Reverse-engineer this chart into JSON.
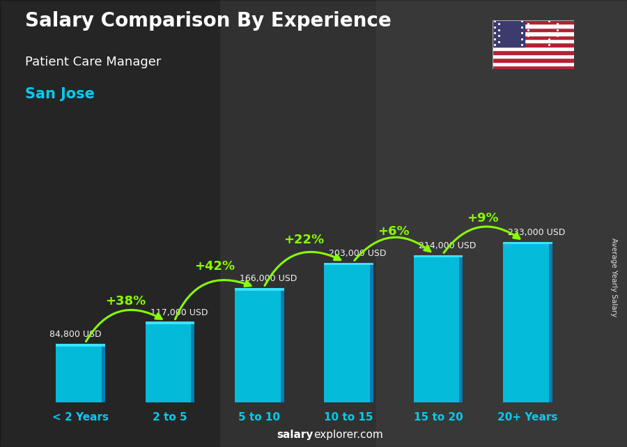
{
  "categories": [
    "< 2 Years",
    "2 to 5",
    "5 to 10",
    "10 to 15",
    "15 to 20",
    "20+ Years"
  ],
  "values": [
    84800,
    117000,
    166000,
    203000,
    214000,
    233000
  ],
  "salary_labels": [
    "84,800 USD",
    "117,000 USD",
    "166,000 USD",
    "203,000 USD",
    "214,000 USD",
    "233,000 USD"
  ],
  "pct_changes": [
    "+38%",
    "+42%",
    "+22%",
    "+6%",
    "+9%"
  ],
  "bar_color_main": "#00c8e8",
  "bar_color_left": "#00d8f8",
  "bar_color_right": "#007ab0",
  "bar_color_top": "#40e8ff",
  "title": "Salary Comparison By Experience",
  "subtitle": "Patient Care Manager",
  "city": "San Jose",
  "ylabel": "Average Yearly Salary",
  "bg_color": "#404040",
  "pct_color": "#88ff00",
  "arrow_color": "#88ff00",
  "salary_text_color": "#ffffff",
  "title_color": "#ffffff",
  "subtitle_color": "#ffffff",
  "city_color": "#00ccee",
  "xtick_color": "#00ccee",
  "footer_bold": "salary",
  "footer_normal": "explorer.com",
  "footer_color": "#ffffff"
}
